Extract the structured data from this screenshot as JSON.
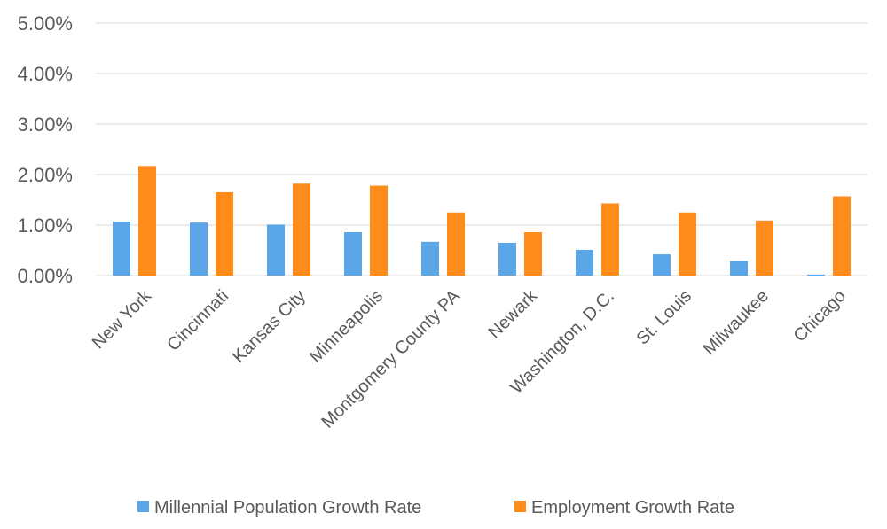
{
  "chart_data": {
    "type": "bar",
    "categories": [
      "New York",
      "Cincinnati",
      "Kansas City",
      "Minneapolis",
      "Montgomery County PA",
      "Newark",
      "Washington, D.C.",
      "St. Louis",
      "Milwaukee",
      "Chicago"
    ],
    "series": [
      {
        "name": "Millennial Population Growth Rate",
        "values": [
          1.07,
          1.05,
          1.01,
          0.86,
          0.67,
          0.65,
          0.51,
          0.42,
          0.29,
          0.02
        ],
        "color": "#5aa6e6"
      },
      {
        "name": "Employment Growth Rate",
        "values": [
          2.17,
          1.65,
          1.82,
          1.78,
          1.25,
          0.86,
          1.43,
          1.25,
          1.09,
          1.57
        ],
        "color": "#ff8c1a"
      }
    ],
    "y_ticks": [
      "0.00%",
      "1.00%",
      "2.00%",
      "3.00%",
      "4.00%",
      "5.00%"
    ],
    "ylim": [
      0,
      5
    ],
    "grid": true,
    "legend_position": "bottom"
  }
}
